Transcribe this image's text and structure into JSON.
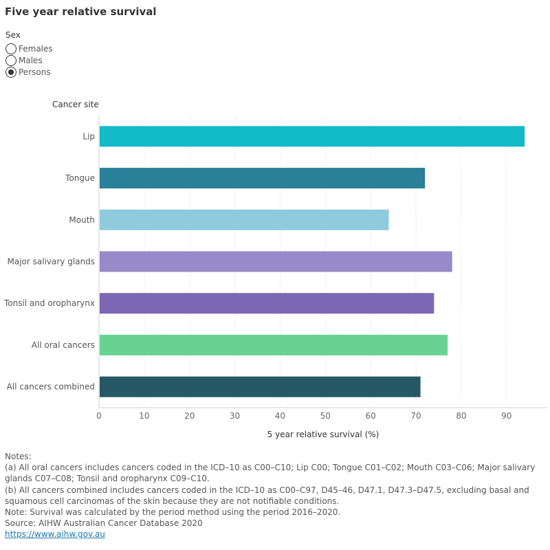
{
  "title": "Five year relative survival",
  "filter": {
    "label": "Sex",
    "options": [
      "Females",
      "Males",
      "Persons"
    ],
    "selected": "Persons"
  },
  "chart_data": {
    "type": "bar",
    "orientation": "horizontal",
    "row_header": "Cancer site",
    "categories": [
      "Lip",
      "Tongue",
      "Mouth",
      "Major salivary glands",
      "Tonsil and oropharynx",
      "All oral cancers",
      "All cancers combined"
    ],
    "values": [
      94,
      72,
      64,
      78,
      74,
      77,
      71
    ],
    "colors": [
      "#13bac8",
      "#2a7f99",
      "#8ecbdc",
      "#978ac8",
      "#7b68b4",
      "#68d292",
      "#275866"
    ],
    "xlabel": "5 year relative survival (%)",
    "xlim": [
      0,
      99
    ],
    "xticks": [
      0,
      10,
      20,
      30,
      40,
      50,
      60,
      70,
      80,
      90
    ],
    "grid": true
  },
  "notes": {
    "heading": "Notes:",
    "a": "(a) All oral cancers includes cancers coded in the ICD–10 as C00–C10; Lip C00; Tongue C01–C02; Mouth C03–C06; Major salivary glands C07–C08; Tonsil and oropharynx C09–C10.",
    "b": "(b) All cancers combined includes cancers coded in the ICD–10 as C00–C97, D45–46, D47.1, D47.3–D47.5, excluding basal and squamous cell carcinomas of the skin because they are not notifiable conditions.",
    "method": "Note: Survival was calculated by the period method using the period 2016–2020.",
    "source": "Source: AIHW Australian Cancer Database 2020",
    "link": "https://www.aihw.gov.au"
  }
}
